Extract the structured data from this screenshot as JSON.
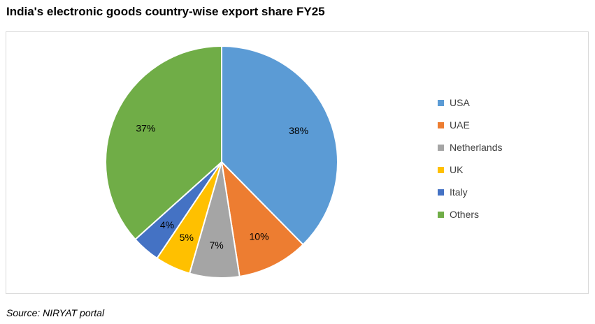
{
  "chart_data": {
    "type": "pie",
    "title": "India's electronic goods country-wise export share FY25",
    "categories": [
      "USA",
      "UAE",
      "Netherlands",
      "UK",
      "Italy",
      "Others"
    ],
    "values": [
      38,
      10,
      7,
      5,
      4,
      37
    ],
    "value_labels": [
      "38%",
      "10%",
      "7%",
      "5%",
      "4%",
      "37%"
    ],
    "colors": [
      "#5b9bd5",
      "#ed7d31",
      "#a5a5a5",
      "#ffc000",
      "#4472c4",
      "#70ad47"
    ],
    "legend_position": "right",
    "start_angle": "12 o'clock",
    "direction": "clockwise"
  },
  "source": "Source: NIRYAT portal"
}
